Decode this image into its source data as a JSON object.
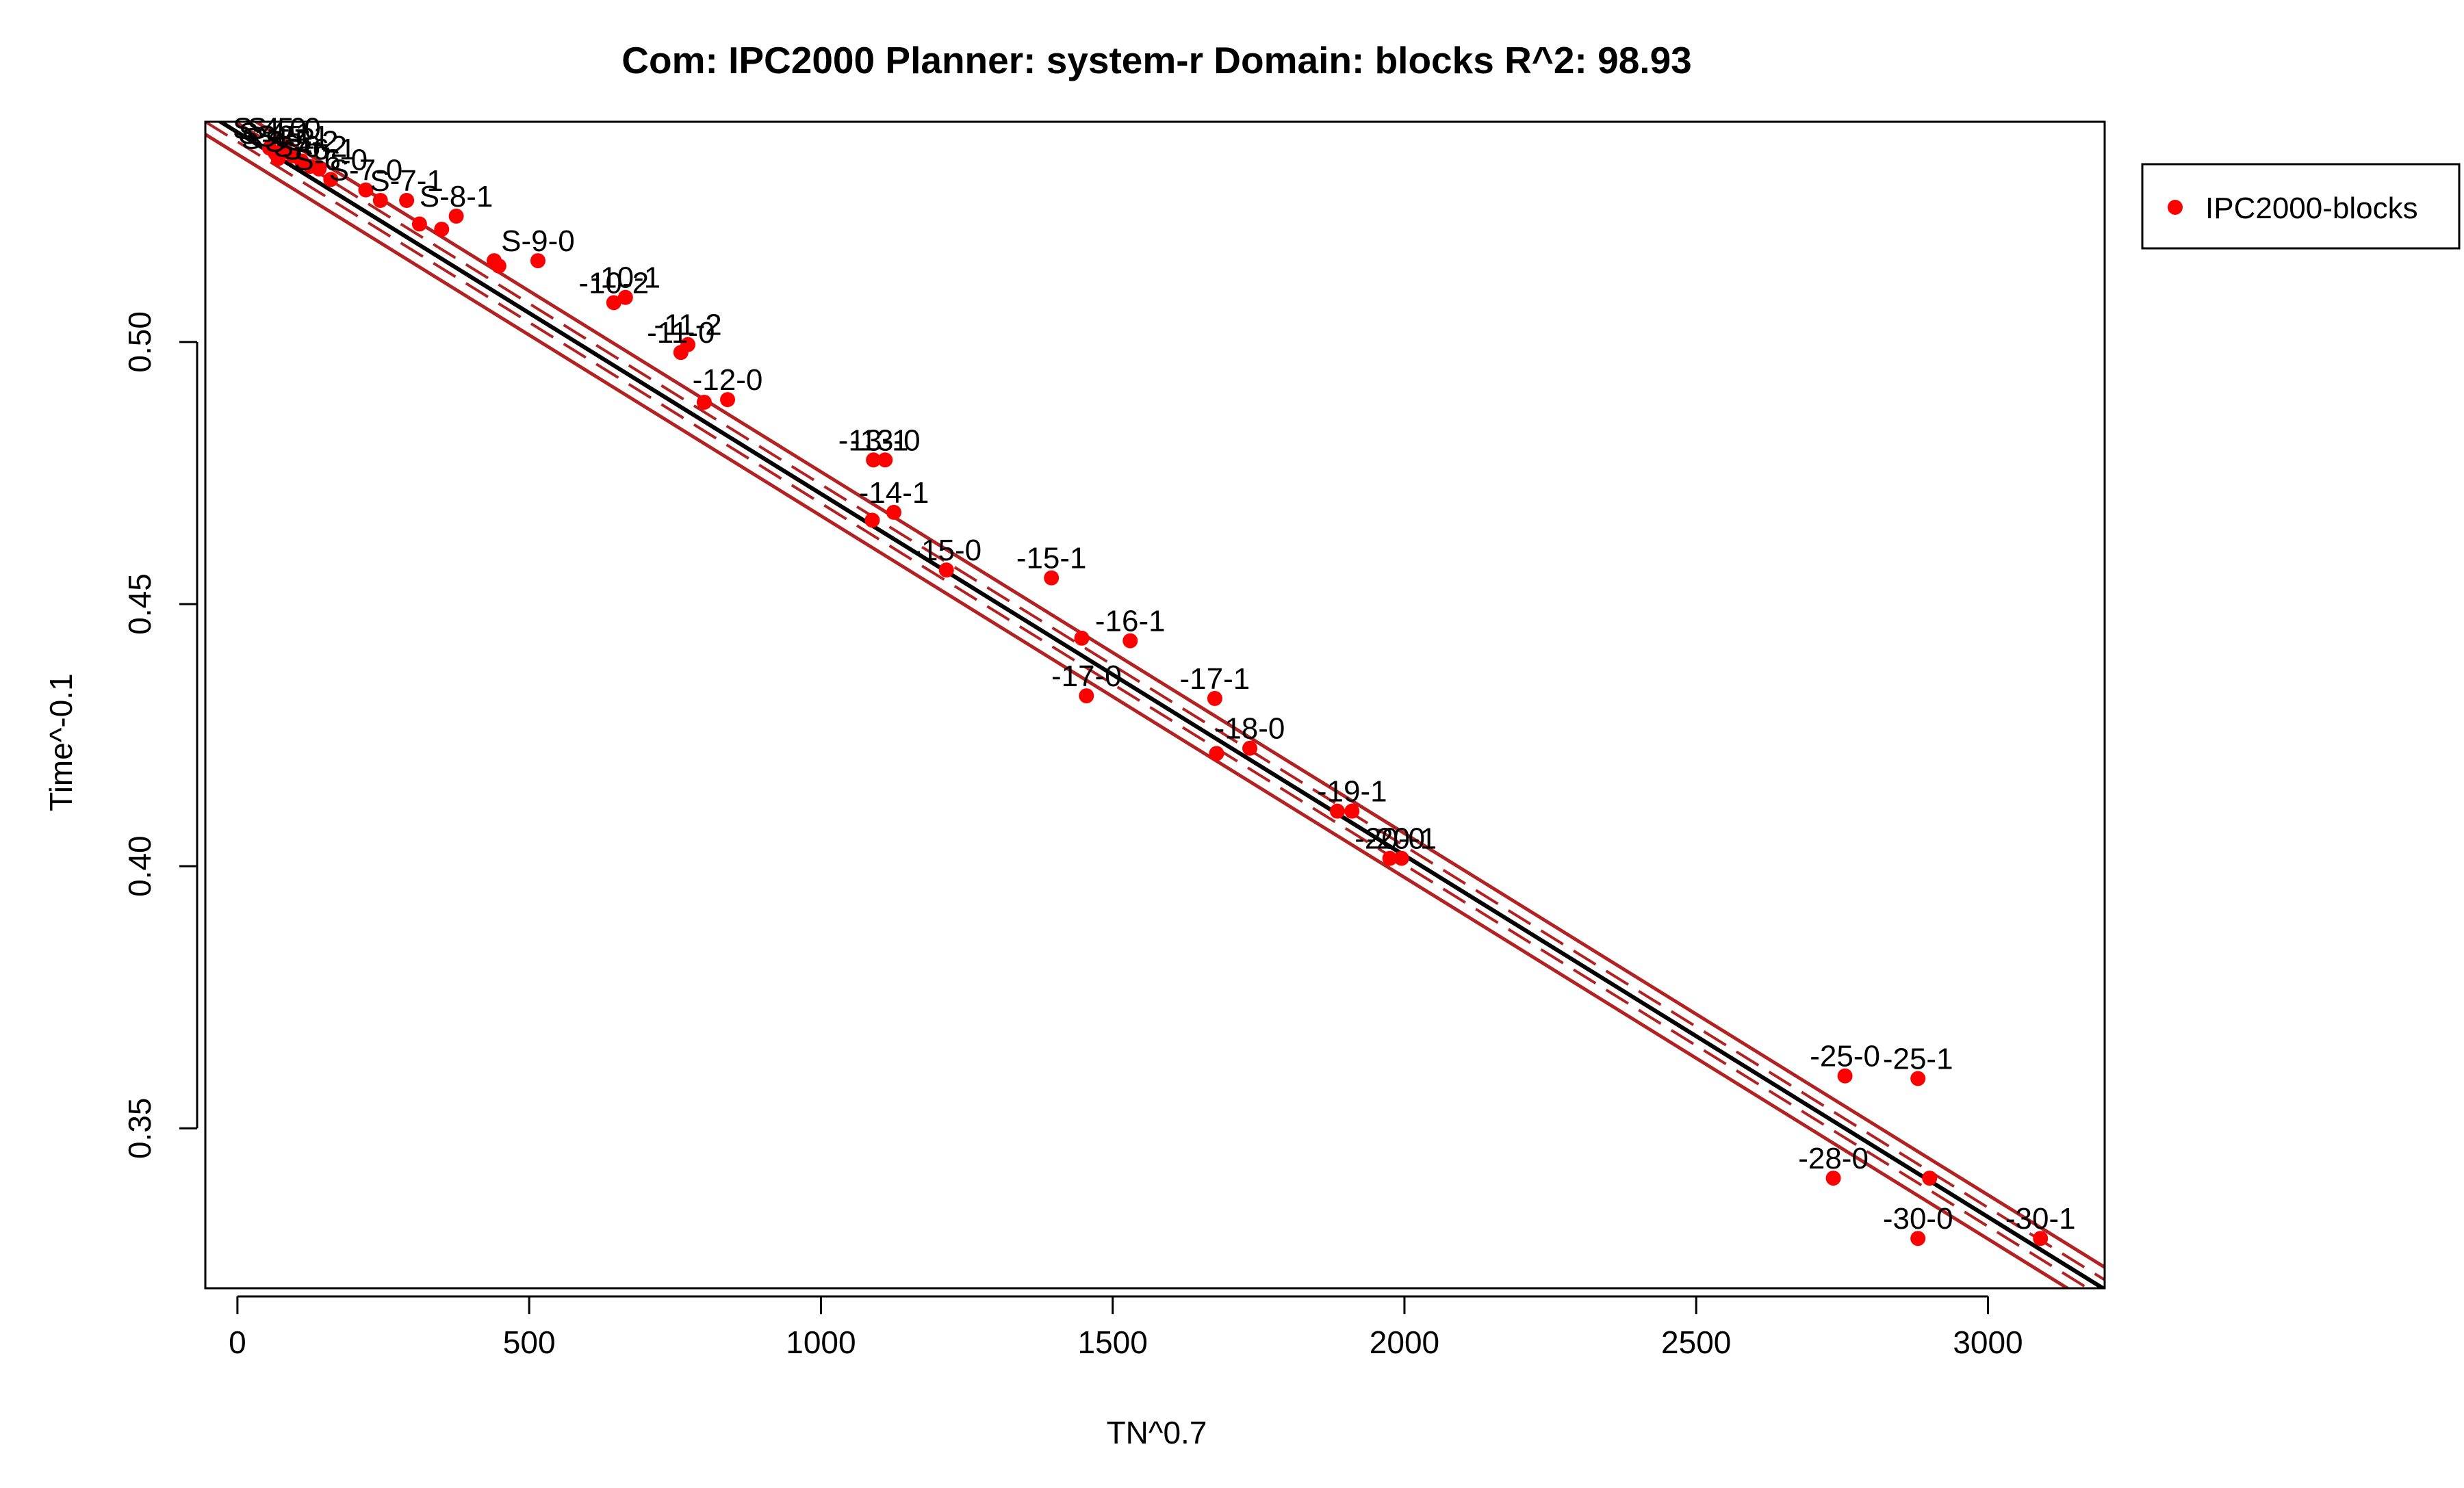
{
  "chart_data": {
    "type": "scatter",
    "title": "Com: IPC2000 Planner: system-r Domain: blocks R^2: 98.93",
    "xlabel": "TN^0.7",
    "ylabel": "Time^-0.1",
    "xlim": [
      -55,
      3200
    ],
    "ylim": [
      0.3195,
      0.542
    ],
    "x_ticks": [
      0,
      500,
      1000,
      1500,
      2000,
      2500,
      3000
    ],
    "y_ticks": [
      0.35,
      0.4,
      0.45,
      0.5
    ],
    "y_tick_labels": [
      "0.35",
      "0.40",
      "0.45",
      "0.50"
    ],
    "legend": {
      "position": "right",
      "entries": [
        {
          "label": "IPC2000-blocks",
          "color": "#ff0000"
        }
      ]
    },
    "colors": {
      "points": "#ff0000",
      "fit": "#000000",
      "band": "#b22222"
    },
    "fit_line": [
      [
        -55,
        0.5438
      ],
      [
        3200,
        0.3193
      ]
    ],
    "inner_band_offset": 0.0018,
    "outer_band_offset": 0.0042,
    "series": [
      {
        "name": "IPC2000-blocks",
        "points": [
          {
            "x": 55,
            "y": 0.537,
            "label": "S-4-0"
          },
          {
            "x": 65,
            "y": 0.536,
            "label": "S-4-1"
          },
          {
            "x": 70,
            "y": 0.535,
            "label": "S-4-2"
          },
          {
            "x": 80,
            "y": 0.537,
            "label": "S-5-0"
          },
          {
            "x": 95,
            "y": 0.5355,
            "label": "S-5-1"
          },
          {
            "x": 110,
            "y": 0.5345,
            "label": "S-5-2"
          },
          {
            "x": 125,
            "y": 0.5335,
            "label": "S-6-2"
          },
          {
            "x": 140,
            "y": 0.533,
            "label": "S-6-1"
          },
          {
            "x": 160,
            "y": 0.531,
            "label": "S-6-0"
          },
          {
            "x": 220,
            "y": 0.529,
            "label": "S-7-0"
          },
          {
            "x": 245,
            "y": 0.527,
            "label": ""
          },
          {
            "x": 290,
            "y": 0.527,
            "label": "S-7-1"
          },
          {
            "x": 312,
            "y": 0.5225,
            "label": ""
          },
          {
            "x": 350,
            "y": 0.5215,
            "label": ""
          },
          {
            "x": 375,
            "y": 0.524,
            "label": "S-8-1"
          },
          {
            "x": 440,
            "y": 0.5155,
            "label": ""
          },
          {
            "x": 448,
            "y": 0.5145,
            "label": ""
          },
          {
            "x": 515,
            "y": 0.5155,
            "label": "S-9-0"
          },
          {
            "x": 645,
            "y": 0.5075,
            "label": "-10-2"
          },
          {
            "x": 665,
            "y": 0.5085,
            "label": "-10-1"
          },
          {
            "x": 760,
            "y": 0.498,
            "label": "-11-0"
          },
          {
            "x": 772,
            "y": 0.4995,
            "label": "-11-2"
          },
          {
            "x": 800,
            "y": 0.4885,
            "label": ""
          },
          {
            "x": 840,
            "y": 0.489,
            "label": "-12-0"
          },
          {
            "x": 1090,
            "y": 0.4775,
            "label": "-13-1"
          },
          {
            "x": 1110,
            "y": 0.4775,
            "label": "-13-0"
          },
          {
            "x": 1088,
            "y": 0.466,
            "label": ""
          },
          {
            "x": 1125,
            "y": 0.4675,
            "label": "-14-1"
          },
          {
            "x": 1215,
            "y": 0.4565,
            "label": "-15-0"
          },
          {
            "x": 1395,
            "y": 0.455,
            "label": "-15-1"
          },
          {
            "x": 1447,
            "y": 0.4435,
            "label": ""
          },
          {
            "x": 1530,
            "y": 0.443,
            "label": "-16-1"
          },
          {
            "x": 1455,
            "y": 0.4325,
            "label": "-17-0"
          },
          {
            "x": 1675,
            "y": 0.432,
            "label": "-17-1"
          },
          {
            "x": 1678,
            "y": 0.4215,
            "label": ""
          },
          {
            "x": 1735,
            "y": 0.4225,
            "label": "-18-0"
          },
          {
            "x": 1885,
            "y": 0.4105,
            "label": ""
          },
          {
            "x": 1910,
            "y": 0.4105,
            "label": "-19-1"
          },
          {
            "x": 1975,
            "y": 0.4015,
            "label": "-20-0"
          },
          {
            "x": 1995,
            "y": 0.4015,
            "label": "-20-1"
          },
          {
            "x": 2755,
            "y": 0.36,
            "label": "-25-0"
          },
          {
            "x": 2880,
            "y": 0.3595,
            "label": "-25-1"
          },
          {
            "x": 2735,
            "y": 0.3405,
            "label": "-28-0"
          },
          {
            "x": 2900,
            "y": 0.3405,
            "label": ""
          },
          {
            "x": 2880,
            "y": 0.329,
            "label": "-30-0"
          },
          {
            "x": 3090,
            "y": 0.329,
            "label": "-30-1"
          }
        ]
      }
    ]
  }
}
